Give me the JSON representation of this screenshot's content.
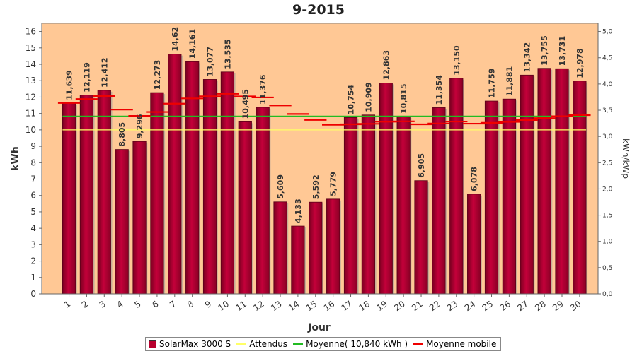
{
  "chart_data": {
    "type": "bar",
    "title": "9-2015",
    "xlabel": "Jour",
    "ylabel": "kWh",
    "y2label": "kWh/kWp",
    "ylim": [
      0,
      16.5
    ],
    "y2lim": [
      0,
      5.15625
    ],
    "categories": [
      "1",
      "2",
      "3",
      "4",
      "5",
      "6",
      "7",
      "8",
      "9",
      "10",
      "11",
      "12",
      "13",
      "14",
      "15",
      "16",
      "17",
      "18",
      "19",
      "20",
      "21",
      "22",
      "23",
      "24",
      "25",
      "26",
      "27",
      "28",
      "29",
      "30"
    ],
    "series": [
      {
        "name": "SolarMax 3000 S",
        "kind": "bar",
        "color": "#b8002e",
        "values": [
          11.639,
          12.119,
          12.412,
          8.805,
          9.296,
          12.273,
          14.62,
          14.161,
          13.077,
          13.535,
          10.495,
          11.376,
          5.609,
          4.133,
          5.592,
          5.779,
          10.754,
          10.909,
          12.863,
          10.815,
          6.905,
          11.354,
          13.15,
          6.078,
          11.759,
          11.881,
          13.342,
          13.755,
          13.731,
          12.978
        ],
        "labels": [
          "11,639",
          "12,119",
          "12,412",
          "8,805",
          "9,296",
          "12,273",
          "14,62",
          "14,161",
          "13,077",
          "13,535",
          "10,495",
          "11,376",
          "5,609",
          "4,133",
          "5,592",
          "5,779",
          "10,754",
          "10,909",
          "12,863",
          "10,815",
          "6,905",
          "11,354",
          "13,150",
          "6,078",
          "11,759",
          "11,881",
          "13,342",
          "13,755",
          "13,731",
          "12,978"
        ]
      },
      {
        "name": "Attendus",
        "kind": "line",
        "color": "#ffff66",
        "values": [
          10,
          10,
          10,
          10,
          10,
          10,
          10,
          10,
          10,
          10,
          10,
          10,
          10,
          10,
          10,
          10,
          10,
          10,
          10,
          10,
          10,
          10,
          10,
          10,
          10,
          10,
          10,
          10,
          10,
          10
        ]
      },
      {
        "name": "Moyenne( 10,840 kWh )",
        "kind": "line",
        "color": "#22bb22",
        "values": [
          10.84,
          10.84,
          10.84,
          10.84,
          10.84,
          10.84,
          10.84,
          10.84,
          10.84,
          10.84,
          10.84,
          10.84,
          10.84,
          10.84,
          10.84,
          10.84,
          10.84,
          10.84,
          10.84,
          10.84,
          10.84,
          10.84,
          10.84,
          10.84,
          10.84,
          10.84,
          10.84,
          10.84,
          10.84,
          10.84
        ]
      },
      {
        "name": "Moyenne mobile",
        "kind": "dashed",
        "color": "#ee0000",
        "values": [
          11.64,
          11.88,
          12.06,
          11.24,
          10.85,
          11.09,
          11.6,
          11.92,
          12.05,
          12.2,
          12.04,
          11.98,
          11.49,
          10.97,
          10.61,
          10.31,
          10.34,
          10.37,
          10.5,
          10.52,
          10.34,
          10.39,
          10.51,
          10.38,
          10.43,
          10.49,
          10.6,
          10.72,
          10.83,
          10.9
        ]
      }
    ],
    "yticks": [
      "0",
      "1",
      "2",
      "3",
      "4",
      "5",
      "6",
      "7",
      "8",
      "9",
      "10",
      "11",
      "12",
      "13",
      "14",
      "15",
      "16"
    ],
    "y2ticks": [
      "0,0",
      "0,5",
      "1,0",
      "1,5",
      "2,0",
      "2,5",
      "3,0",
      "3,5",
      "4,0",
      "4,5",
      "5,0"
    ],
    "legend_position": "bottom",
    "grid": false
  }
}
